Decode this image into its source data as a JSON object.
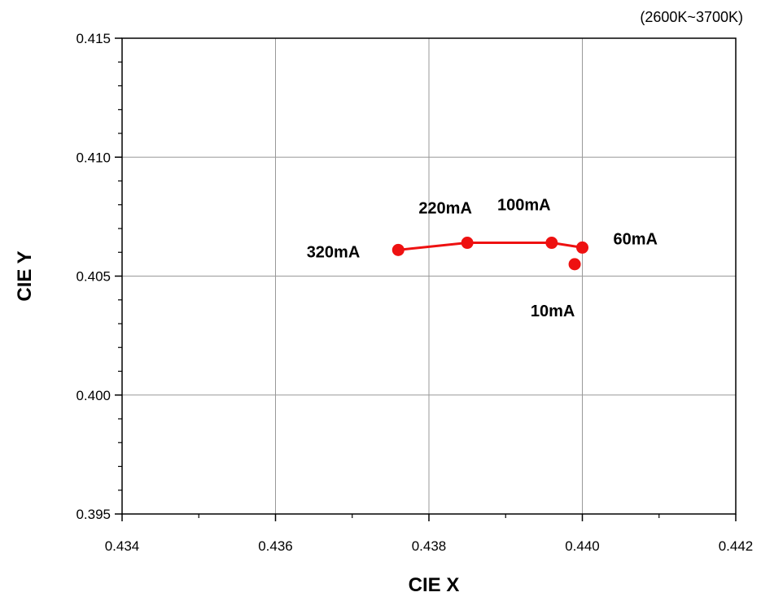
{
  "chart_data": {
    "type": "scatter",
    "title": "",
    "subtitle": "(2600K~3700K)",
    "xlabel": "CIE X",
    "ylabel": "CIE Y",
    "xlim": [
      0.434,
      0.442
    ],
    "ylim": [
      0.395,
      0.415
    ],
    "x_ticks": [
      "0.434",
      "0.436",
      "0.438",
      "0.440",
      "0.442"
    ],
    "y_ticks": [
      "0.395",
      "0.400",
      "0.405",
      "0.410",
      "0.415"
    ],
    "grid": true,
    "marker_color": "#ee1111",
    "line_color": "#ee1111",
    "series": [
      {
        "points": [
          {
            "label": "320mA",
            "x": 0.4376,
            "y": 0.4061
          },
          {
            "label": "220mA",
            "x": 0.4385,
            "y": 0.4064
          },
          {
            "label": "100mA",
            "x": 0.4396,
            "y": 0.4064
          },
          {
            "label": "60mA",
            "x": 0.44,
            "y": 0.4062
          },
          {
            "label": "10mA",
            "x": 0.4399,
            "y": 0.4055
          }
        ],
        "connected_points": [
          "320mA",
          "220mA",
          "100mA",
          "60mA"
        ]
      }
    ]
  }
}
